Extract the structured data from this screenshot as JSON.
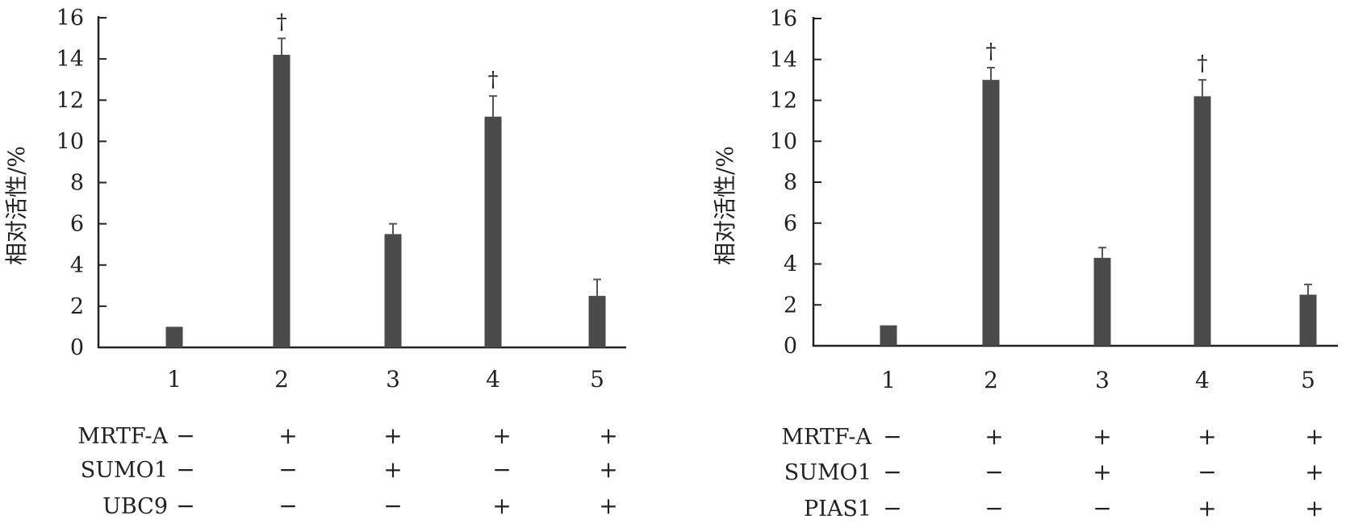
{
  "chart_data": [
    {
      "type": "bar",
      "title": "",
      "ylabel": "相对活性/%",
      "xlabel": "",
      "ylim": [
        0,
        16
      ],
      "yticks": [
        0,
        2,
        4,
        6,
        8,
        10,
        12,
        14,
        16
      ],
      "categories": [
        "1",
        "2",
        "3",
        "4",
        "5"
      ],
      "values": [
        1.0,
        14.2,
        5.5,
        11.2,
        2.5
      ],
      "errors": [
        0,
        0.8,
        0.5,
        1.0,
        0.8
      ],
      "significance": [
        "",
        "†",
        "",
        "†",
        ""
      ],
      "bar_color": "#4a4a4a",
      "conditions": [
        {
          "name": "MRTF-A",
          "signs": [
            "−",
            "+",
            "+",
            "+",
            "+"
          ]
        },
        {
          "name": "SUMO1",
          "signs": [
            "−",
            "−",
            "+",
            "−",
            "+"
          ]
        },
        {
          "name": "UBC9",
          "signs": [
            "−",
            "−",
            "−",
            "+",
            "+"
          ]
        }
      ]
    },
    {
      "type": "bar",
      "title": "",
      "ylabel": "相对活性/%",
      "xlabel": "",
      "ylim": [
        0,
        16
      ],
      "yticks": [
        0,
        2,
        4,
        6,
        8,
        10,
        12,
        14,
        16
      ],
      "categories": [
        "1",
        "2",
        "3",
        "4",
        "5"
      ],
      "values": [
        1.0,
        13.0,
        4.3,
        12.2,
        2.5
      ],
      "errors": [
        0,
        0.6,
        0.5,
        0.8,
        0.5
      ],
      "significance": [
        "",
        "†",
        "",
        "†",
        ""
      ],
      "bar_color": "#4a4a4a",
      "conditions": [
        {
          "name": "MRTF-A",
          "signs": [
            "−",
            "+",
            "+",
            "+",
            "+"
          ]
        },
        {
          "name": "SUMO1",
          "signs": [
            "−",
            "−",
            "+",
            "−",
            "+"
          ]
        },
        {
          "name": "PIAS1",
          "signs": [
            "−",
            "−",
            "−",
            "+",
            "+"
          ]
        }
      ]
    }
  ]
}
